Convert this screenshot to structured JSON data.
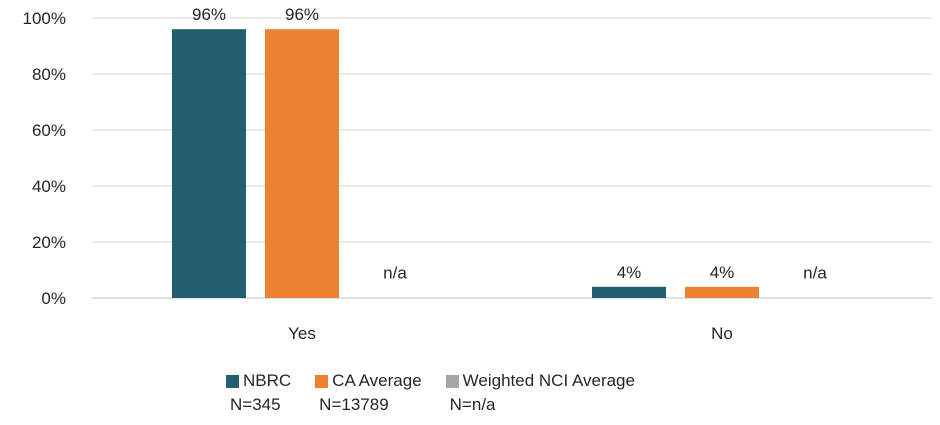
{
  "chart_data": {
    "type": "bar",
    "categories": [
      "Yes",
      "No"
    ],
    "series": [
      {
        "name": "NBRC",
        "n_label": "N=345",
        "color": "#235F6E",
        "values": [
          96,
          4
        ],
        "labels": [
          "96%",
          "4%"
        ]
      },
      {
        "name": "CA Average",
        "n_label": "N=13789",
        "color": "#ED8133",
        "values": [
          96,
          4
        ],
        "labels": [
          "96%",
          "4%"
        ]
      },
      {
        "name": "Weighted NCI Average",
        "n_label": "N=n/a",
        "color": "#A6A6A6",
        "values": [
          null,
          null
        ],
        "labels": [
          "n/a",
          "n/a"
        ]
      }
    ],
    "y_ticks": [
      "0%",
      "20%",
      "40%",
      "60%",
      "80%",
      "100%"
    ],
    "ylim": [
      0,
      100
    ],
    "grid": true,
    "legend_position": "bottom"
  }
}
